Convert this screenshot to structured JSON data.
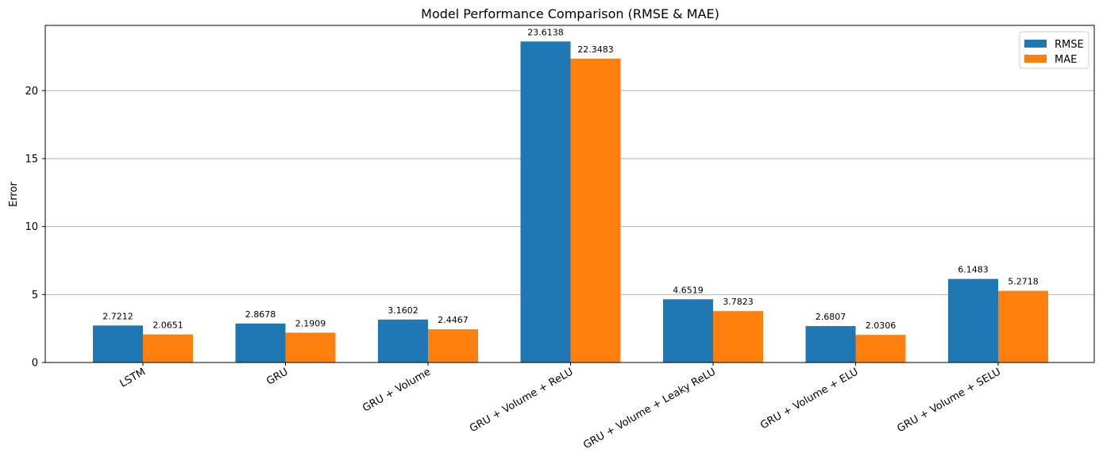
{
  "chart_data": {
    "type": "bar",
    "title": "Model Performance Comparison (RMSE & MAE)",
    "xlabel": "",
    "ylabel": "Error",
    "ylim": [
      0,
      24.8
    ],
    "yticks": [
      0,
      5,
      10,
      15,
      20
    ],
    "grid": "y-major",
    "legend_position": "top-right",
    "categories": [
      "LSTM",
      "GRU",
      "GRU + Volume",
      "GRU + Volume + ReLU",
      "GRU + Volume + Leaky ReLU",
      "GRU + Volume + ELU",
      "GRU + Volume + SELU"
    ],
    "series": [
      {
        "name": "RMSE",
        "color": "#1f77b4",
        "values": [
          2.7212,
          2.8678,
          3.1602,
          23.6138,
          4.6519,
          2.6807,
          6.1483
        ],
        "labels": [
          "2.7212",
          "2.8678",
          "3.1602",
          "23.6138",
          "4.6519",
          "2.6807",
          "6.1483"
        ]
      },
      {
        "name": "MAE",
        "color": "#ff7f0e",
        "values": [
          2.0651,
          2.1909,
          2.4467,
          22.3483,
          3.7823,
          2.0306,
          5.2718
        ],
        "labels": [
          "2.0651",
          "2.1909",
          "2.4467",
          "22.3483",
          "3.7823",
          "2.0306",
          "5.2718"
        ]
      }
    ]
  }
}
